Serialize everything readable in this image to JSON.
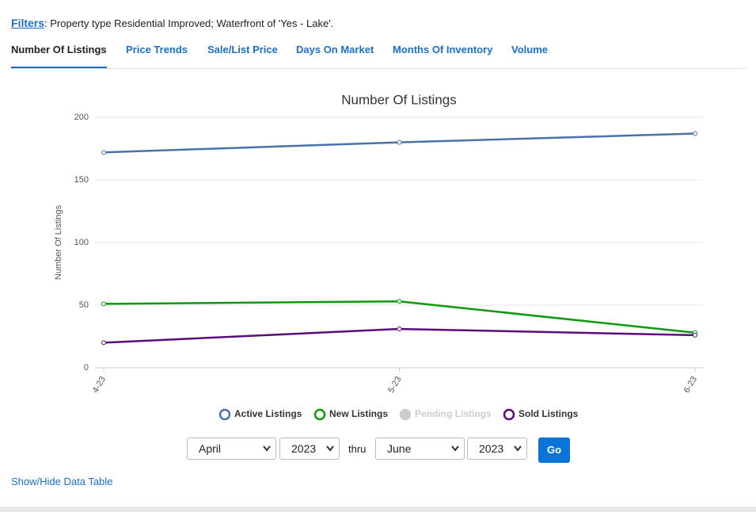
{
  "filters": {
    "label": "Filters",
    "text": ": Property type Residential Improved; Waterfront of 'Yes - Lake'."
  },
  "tabs": [
    "Number Of Listings",
    "Price Trends",
    "Sale/List Price",
    "Days On Market",
    "Months Of Inventory",
    "Volume"
  ],
  "chart_data": {
    "type": "line",
    "title": "Number Of Listings",
    "y_label": "Number Of Listings",
    "categories": [
      "4-23",
      "5-23",
      "6-23"
    ],
    "series": [
      {
        "name": "Active Listings",
        "color": "#4a72aa",
        "values": [
          172,
          180,
          187
        ]
      },
      {
        "name": "New Listings",
        "color": "#0b9a0b",
        "values": [
          51,
          53,
          28
        ]
      },
      {
        "name": "Pending Listings",
        "color": "#cccccc",
        "hidden": true,
        "values": [
          null,
          null,
          null
        ]
      },
      {
        "name": "Sold Listings",
        "color": "#5a0c7c",
        "values": [
          20,
          31,
          26
        ]
      }
    ],
    "ylim": [
      0,
      200
    ],
    "yticks": [
      0,
      50,
      100,
      150,
      200
    ],
    "grid": true,
    "legend": "bottom"
  },
  "controls": {
    "start_month": "April",
    "start_year": "2023",
    "thru": "thru",
    "end_month": "June",
    "end_year": "2023",
    "button": "Go"
  },
  "data_table_link": "Show/Hide Data Table"
}
